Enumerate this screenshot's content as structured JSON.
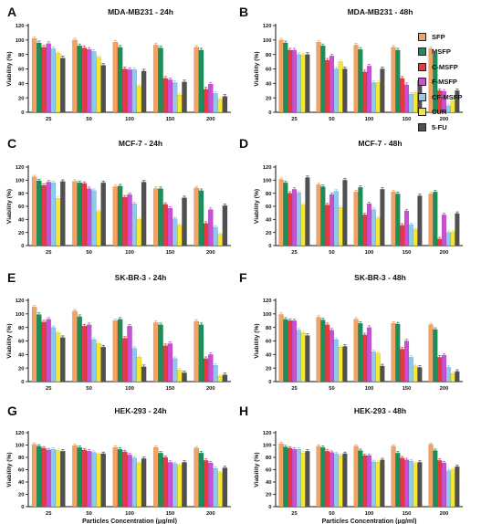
{
  "colors": {
    "SFP": "#f4a261",
    "MSFP": "#1a8f5a",
    "C-MSFP": "#e63946",
    "F-MSFP": "#c94fd6",
    "CF-MSFP": "#8ec9f0",
    "CUR": "#f7e733",
    "5-FU": "#505050"
  },
  "legend": [
    "SFP",
    "MSFP",
    "C-MSFP",
    "F-MSFP",
    "CF-MSFP",
    "CUR",
    "5-FU"
  ],
  "chart_data": [
    {
      "panel": "A",
      "type": "bar",
      "title": "MDA-MB231 - 24h",
      "categories": [
        "25",
        "50",
        "100",
        "150",
        "200"
      ],
      "xlabel": "",
      "ylabel": "Viability (%)",
      "ylim": [
        0,
        120
      ],
      "yticks": [
        "0",
        "20",
        "40",
        "60",
        "80",
        "100",
        "120"
      ],
      "series": [
        {
          "name": "SFP",
          "values": [
            102,
            100,
            97,
            93,
            90
          ]
        },
        {
          "name": "MSFP",
          "values": [
            96,
            92,
            90,
            89,
            86
          ]
        },
        {
          "name": "C-MSFP",
          "values": [
            90,
            89,
            60,
            47,
            32
          ]
        },
        {
          "name": "F-MSFP",
          "values": [
            95,
            87,
            59,
            45,
            39
          ]
        },
        {
          "name": "CF-MSFP",
          "values": [
            88,
            84,
            59,
            41,
            26
          ]
        },
        {
          "name": "CUR",
          "values": [
            82,
            76,
            36,
            24,
            18
          ]
        },
        {
          "name": "5-FU",
          "values": [
            75,
            65,
            57,
            42,
            22
          ]
        }
      ]
    },
    {
      "panel": "B",
      "type": "bar",
      "title": "MDA-MB231 - 48h",
      "categories": [
        "25",
        "50",
        "100",
        "150",
        "200"
      ],
      "xlabel": "",
      "ylabel": "Viability (%)",
      "ylim": [
        0,
        120
      ],
      "yticks": [
        "0",
        "20",
        "40",
        "60",
        "80",
        "100",
        "120"
      ],
      "series": [
        {
          "name": "SFP",
          "values": [
            100,
            97,
            93,
            90,
            88
          ]
        },
        {
          "name": "MSFP",
          "values": [
            96,
            92,
            87,
            86,
            81
          ]
        },
        {
          "name": "C-MSFP",
          "values": [
            86,
            72,
            56,
            47,
            30
          ]
        },
        {
          "name": "F-MSFP",
          "values": [
            86,
            78,
            64,
            38,
            29
          ]
        },
        {
          "name": "CF-MSFP",
          "values": [
            80,
            60,
            41,
            25,
            9
          ]
        },
        {
          "name": "CUR",
          "values": [
            79,
            70,
            41,
            27,
            16
          ]
        },
        {
          "name": "5-FU",
          "values": [
            80,
            60,
            60,
            44,
            30
          ]
        }
      ]
    },
    {
      "panel": "C",
      "type": "bar",
      "title": "MCF-7 - 24h",
      "categories": [
        "25",
        "50",
        "100",
        "150",
        "200"
      ],
      "xlabel": "",
      "ylabel": "Viability (%)",
      "ylim": [
        0,
        120
      ],
      "yticks": [
        "0",
        "20",
        "40",
        "60",
        "80",
        "100",
        "120"
      ],
      "series": [
        {
          "name": "SFP",
          "values": [
            105,
            98,
            90,
            87,
            88
          ]
        },
        {
          "name": "MSFP",
          "values": [
            99,
            96,
            91,
            87,
            84
          ]
        },
        {
          "name": "C-MSFP",
          "values": [
            92,
            95,
            74,
            63,
            34
          ]
        },
        {
          "name": "F-MSFP",
          "values": [
            97,
            87,
            78,
            57,
            55
          ]
        },
        {
          "name": "CF-MSFP",
          "values": [
            96,
            84,
            64,
            41,
            28
          ]
        },
        {
          "name": "CUR",
          "values": [
            72,
            52,
            40,
            31,
            17
          ]
        },
        {
          "name": "5-FU",
          "values": [
            98,
            96,
            97,
            73,
            61
          ]
        }
      ]
    },
    {
      "panel": "D",
      "type": "bar",
      "title": "MCF-7 - 48h",
      "categories": [
        "25",
        "50",
        "100",
        "150",
        "200"
      ],
      "xlabel": "",
      "ylabel": "Viability (%)",
      "ylim": [
        0,
        120
      ],
      "yticks": [
        "0",
        "20",
        "40",
        "60",
        "80",
        "100",
        "120"
      ],
      "series": [
        {
          "name": "SFP",
          "values": [
            101,
            93,
            82,
            82,
            79
          ]
        },
        {
          "name": "MSFP",
          "values": [
            96,
            90,
            89,
            79,
            82
          ]
        },
        {
          "name": "C-MSFP",
          "values": [
            80,
            62,
            47,
            31,
            10
          ]
        },
        {
          "name": "F-MSFP",
          "values": [
            86,
            78,
            64,
            53,
            47
          ]
        },
        {
          "name": "CF-MSFP",
          "values": [
            81,
            83,
            55,
            32,
            20
          ]
        },
        {
          "name": "CUR",
          "values": [
            62,
            58,
            42,
            25,
            21
          ]
        },
        {
          "name": "5-FU",
          "values": [
            104,
            100,
            86,
            76,
            49
          ]
        }
      ]
    },
    {
      "panel": "E",
      "type": "bar",
      "title": "SK-BR-3 - 24h",
      "categories": [
        "25",
        "50",
        "100",
        "150",
        "200"
      ],
      "xlabel": "",
      "ylabel": "Viability (%)",
      "ylim": [
        0,
        120
      ],
      "yticks": [
        "0",
        "20",
        "40",
        "60",
        "80",
        "100",
        "120"
      ],
      "series": [
        {
          "name": "SFP",
          "values": [
            110,
            104,
            90,
            87,
            89
          ]
        },
        {
          "name": "MSFP",
          "values": [
            99,
            96,
            92,
            84,
            84
          ]
        },
        {
          "name": "C-MSFP",
          "values": [
            88,
            82,
            64,
            53,
            34
          ]
        },
        {
          "name": "F-MSFP",
          "values": [
            92,
            84,
            82,
            56,
            40
          ]
        },
        {
          "name": "CF-MSFP",
          "values": [
            80,
            62,
            49,
            34,
            24
          ]
        },
        {
          "name": "CUR",
          "values": [
            72,
            56,
            36,
            17,
            8
          ]
        },
        {
          "name": "5-FU",
          "values": [
            65,
            51,
            22,
            13,
            10
          ]
        }
      ]
    },
    {
      "panel": "F",
      "type": "bar",
      "title": "SK-BR-3 - 48h",
      "categories": [
        "25",
        "50",
        "100",
        "150",
        "200"
      ],
      "xlabel": "",
      "ylabel": "Viability (%)",
      "ylim": [
        0,
        120
      ],
      "yticks": [
        "0",
        "20",
        "40",
        "60",
        "80",
        "100",
        "120"
      ],
      "series": [
        {
          "name": "SFP",
          "values": [
            99,
            95,
            92,
            86,
            84
          ]
        },
        {
          "name": "MSFP",
          "values": [
            92,
            91,
            86,
            85,
            77
          ]
        },
        {
          "name": "C-MSFP",
          "values": [
            90,
            84,
            69,
            48,
            36
          ]
        },
        {
          "name": "F-MSFP",
          "values": [
            90,
            76,
            80,
            60,
            39
          ]
        },
        {
          "name": "CF-MSFP",
          "values": [
            76,
            62,
            44,
            36,
            21
          ]
        },
        {
          "name": "CUR",
          "values": [
            72,
            51,
            42,
            23,
            12
          ]
        },
        {
          "name": "5-FU",
          "values": [
            68,
            52,
            23,
            21,
            15
          ]
        }
      ]
    },
    {
      "panel": "G",
      "type": "bar",
      "title": "HEK-293 - 24h",
      "categories": [
        "25",
        "50",
        "100",
        "150",
        "200"
      ],
      "xlabel": "Particles Concentration (μg/ml)",
      "ylabel": "Viability (%)",
      "ylim": [
        0,
        120
      ],
      "yticks": [
        "0",
        "20",
        "40",
        "60",
        "80",
        "100",
        "120"
      ],
      "series": [
        {
          "name": "SFP",
          "values": [
            101,
            99,
            96,
            96,
            95
          ]
        },
        {
          "name": "MSFP",
          "values": [
            98,
            96,
            93,
            87,
            87
          ]
        },
        {
          "name": "C-MSFP",
          "values": [
            95,
            92,
            89,
            80,
            75
          ]
        },
        {
          "name": "F-MSFP",
          "values": [
            92,
            90,
            84,
            72,
            71
          ]
        },
        {
          "name": "CF-MSFP",
          "values": [
            93,
            88,
            79,
            70,
            62
          ]
        },
        {
          "name": "CUR",
          "values": [
            91,
            85,
            71,
            67,
            55
          ]
        },
        {
          "name": "5-FU",
          "values": [
            90,
            86,
            78,
            72,
            63
          ]
        }
      ]
    },
    {
      "panel": "H",
      "type": "bar",
      "title": "HEK-293 - 48h",
      "categories": [
        "25",
        "50",
        "100",
        "150",
        "200"
      ],
      "xlabel": "Particles Concentration (μg/ml)",
      "ylabel": "Viability (%)",
      "ylim": [
        0,
        120
      ],
      "yticks": [
        "0",
        "20",
        "40",
        "60",
        "80",
        "100",
        "120"
      ],
      "series": [
        {
          "name": "SFP",
          "values": [
            102,
            98,
            98,
            98,
            101
          ]
        },
        {
          "name": "MSFP",
          "values": [
            97,
            96,
            91,
            87,
            91
          ]
        },
        {
          "name": "C-MSFP",
          "values": [
            95,
            90,
            83,
            79,
            75
          ]
        },
        {
          "name": "F-MSFP",
          "values": [
            93,
            88,
            83,
            76,
            71
          ]
        },
        {
          "name": "CF-MSFP",
          "values": [
            93,
            86,
            73,
            74,
            58
          ]
        },
        {
          "name": "CUR",
          "values": [
            87,
            83,
            72,
            70,
            60
          ]
        },
        {
          "name": "5-FU",
          "values": [
            90,
            86,
            76,
            72,
            65
          ]
        }
      ]
    }
  ]
}
